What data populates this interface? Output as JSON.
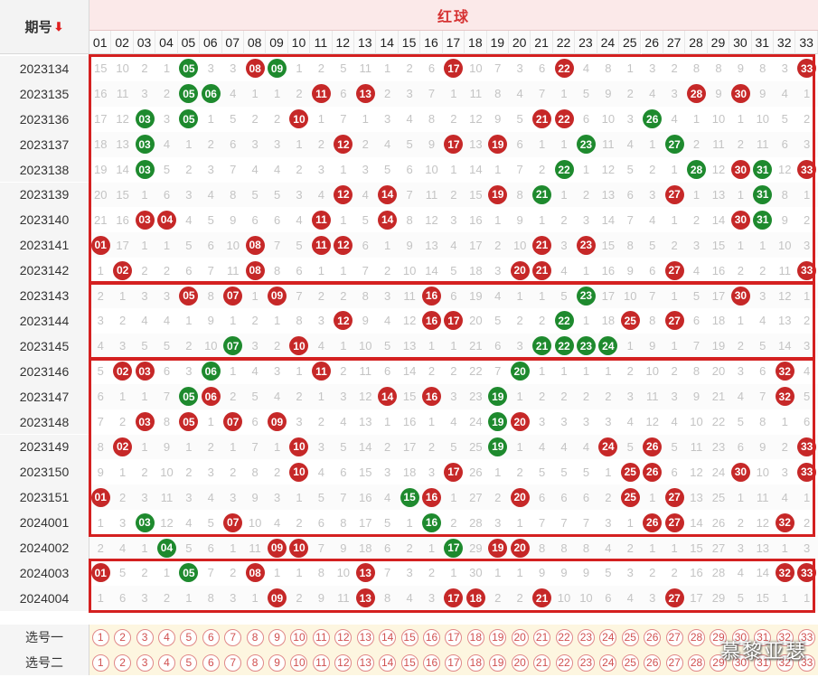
{
  "header": {
    "period_label": "期号",
    "sort_icon": "down-arrow",
    "red_ball_label": "红球",
    "numbers": [
      "01",
      "02",
      "03",
      "04",
      "05",
      "06",
      "07",
      "08",
      "09",
      "10",
      "11",
      "12",
      "13",
      "14",
      "15",
      "16",
      "17",
      "18",
      "19",
      "20",
      "21",
      "22",
      "23",
      "24",
      "25",
      "26",
      "27",
      "28",
      "29",
      "30",
      "31",
      "32",
      "33"
    ]
  },
  "colors": {
    "red_ball": "#c62828",
    "green_ball": "#1e8a2e",
    "box_border": "#d42020",
    "header_red": "#d63333"
  },
  "rows": [
    {
      "period": "2023134",
      "cells": [
        "15",
        "10",
        "2",
        "1",
        {
          "b": "05",
          "c": "g"
        },
        "3",
        "3",
        {
          "b": "08",
          "c": "r"
        },
        {
          "b": "09",
          "c": "g"
        },
        "1",
        "2",
        "5",
        "11",
        "1",
        "2",
        "6",
        {
          "b": "17",
          "c": "r"
        },
        "10",
        "7",
        "3",
        "6",
        {
          "b": "22",
          "c": "r"
        },
        "4",
        "8",
        "1",
        "3",
        "2",
        "8",
        "8",
        "9",
        "8",
        "3",
        {
          "b": "33",
          "c": "r"
        }
      ]
    },
    {
      "period": "2023135",
      "cells": [
        "16",
        "11",
        "3",
        "2",
        {
          "b": "05",
          "c": "g"
        },
        {
          "b": "06",
          "c": "g"
        },
        "4",
        "1",
        "1",
        "2",
        {
          "b": "11",
          "c": "r"
        },
        "6",
        {
          "b": "13",
          "c": "r"
        },
        "2",
        "3",
        "7",
        "1",
        "11",
        "8",
        "4",
        "7",
        "1",
        "5",
        "9",
        "2",
        "4",
        "3",
        {
          "b": "28",
          "c": "r"
        },
        "9",
        {
          "b": "30",
          "c": "r"
        },
        "9",
        "4",
        "1"
      ]
    },
    {
      "period": "2023136",
      "cells": [
        "17",
        "12",
        {
          "b": "03",
          "c": "g"
        },
        "3",
        {
          "b": "05",
          "c": "g"
        },
        "1",
        "5",
        "2",
        "2",
        {
          "b": "10",
          "c": "r"
        },
        "1",
        "7",
        "1",
        "3",
        "4",
        "8",
        "2",
        "12",
        "9",
        "5",
        {
          "b": "21",
          "c": "r"
        },
        {
          "b": "22",
          "c": "r"
        },
        "6",
        "10",
        "3",
        {
          "b": "26",
          "c": "g"
        },
        "4",
        "1",
        "10",
        "1",
        "10",
        "5",
        "2"
      ]
    },
    {
      "period": "2023137",
      "cells": [
        "18",
        "13",
        {
          "b": "03",
          "c": "g"
        },
        "4",
        "1",
        "2",
        "6",
        "3",
        "3",
        "1",
        "2",
        {
          "b": "12",
          "c": "r"
        },
        "2",
        "4",
        "5",
        "9",
        {
          "b": "17",
          "c": "r"
        },
        "13",
        {
          "b": "19",
          "c": "r"
        },
        "6",
        "1",
        "1",
        {
          "b": "23",
          "c": "g"
        },
        "11",
        "4",
        "1",
        {
          "b": "27",
          "c": "g"
        },
        "2",
        "11",
        "2",
        "11",
        "6",
        "3"
      ]
    },
    {
      "period": "2023138",
      "cells": [
        "19",
        "14",
        {
          "b": "03",
          "c": "g"
        },
        "5",
        "2",
        "3",
        "7",
        "4",
        "4",
        "2",
        "3",
        "1",
        "3",
        "5",
        "6",
        "10",
        "1",
        "14",
        "1",
        "7",
        "2",
        {
          "b": "22",
          "c": "g"
        },
        "1",
        "12",
        "5",
        "2",
        "1",
        {
          "b": "28",
          "c": "g"
        },
        "12",
        {
          "b": "30",
          "c": "r"
        },
        {
          "b": "31",
          "c": "g"
        },
        "12",
        {
          "b": "33",
          "c": "r"
        }
      ]
    },
    {
      "period": "2023139",
      "cells": [
        "20",
        "15",
        "1",
        "6",
        "3",
        "4",
        "8",
        "5",
        "5",
        "3",
        "4",
        {
          "b": "12",
          "c": "r"
        },
        "4",
        {
          "b": "14",
          "c": "r"
        },
        "7",
        "11",
        "2",
        "15",
        {
          "b": "19",
          "c": "r"
        },
        "8",
        {
          "b": "21",
          "c": "g"
        },
        "1",
        "2",
        "13",
        "6",
        "3",
        {
          "b": "27",
          "c": "r"
        },
        "1",
        "13",
        "1",
        {
          "b": "31",
          "c": "g"
        },
        "8",
        "1"
      ]
    },
    {
      "period": "2023140",
      "cells": [
        "21",
        "16",
        {
          "b": "03",
          "c": "r"
        },
        {
          "b": "04",
          "c": "r"
        },
        "4",
        "5",
        "9",
        "6",
        "6",
        "4",
        {
          "b": "11",
          "c": "r"
        },
        "1",
        "5",
        {
          "b": "14",
          "c": "r"
        },
        "8",
        "12",
        "3",
        "16",
        "1",
        "9",
        "1",
        "2",
        "3",
        "14",
        "7",
        "4",
        "1",
        "2",
        "14",
        {
          "b": "30",
          "c": "r"
        },
        {
          "b": "31",
          "c": "g"
        },
        "9",
        "2"
      ]
    },
    {
      "period": "2023141",
      "cells": [
        {
          "b": "01",
          "c": "r"
        },
        "17",
        "1",
        "1",
        "5",
        "6",
        "10",
        {
          "b": "08",
          "c": "r"
        },
        "7",
        "5",
        {
          "b": "11",
          "c": "r"
        },
        {
          "b": "12",
          "c": "r"
        },
        "6",
        "1",
        "9",
        "13",
        "4",
        "17",
        "2",
        "10",
        {
          "b": "21",
          "c": "r"
        },
        "3",
        {
          "b": "23",
          "c": "r"
        },
        "15",
        "8",
        "5",
        "2",
        "3",
        "15",
        "1",
        "1",
        "10",
        "3"
      ]
    },
    {
      "period": "2023142",
      "cells": [
        "1",
        {
          "b": "02",
          "c": "r"
        },
        "2",
        "2",
        "6",
        "7",
        "11",
        {
          "b": "08",
          "c": "r"
        },
        "8",
        "6",
        "1",
        "1",
        "7",
        "2",
        "10",
        "14",
        "5",
        "18",
        "3",
        {
          "b": "20",
          "c": "r"
        },
        {
          "b": "21",
          "c": "r"
        },
        "4",
        "1",
        "16",
        "9",
        "6",
        {
          "b": "27",
          "c": "r"
        },
        "4",
        "16",
        "2",
        "2",
        "11",
        {
          "b": "33",
          "c": "r"
        }
      ]
    },
    {
      "period": "2023143",
      "cells": [
        "2",
        "1",
        "3",
        "3",
        {
          "b": "05",
          "c": "r"
        },
        "8",
        {
          "b": "07",
          "c": "r"
        },
        "1",
        {
          "b": "09",
          "c": "r"
        },
        "7",
        "2",
        "2",
        "8",
        "3",
        "11",
        {
          "b": "16",
          "c": "r"
        },
        "6",
        "19",
        "4",
        "1",
        "1",
        "5",
        {
          "b": "23",
          "c": "g"
        },
        "17",
        "10",
        "7",
        "1",
        "5",
        "17",
        {
          "b": "30",
          "c": "r"
        },
        "3",
        "12",
        "1"
      ]
    },
    {
      "period": "2023144",
      "cells": [
        "3",
        "2",
        "4",
        "4",
        "1",
        "9",
        "1",
        "2",
        "1",
        "8",
        "3",
        {
          "b": "12",
          "c": "r"
        },
        "9",
        "4",
        "12",
        {
          "b": "16",
          "c": "r"
        },
        {
          "b": "17",
          "c": "r"
        },
        "20",
        "5",
        "2",
        "2",
        {
          "b": "22",
          "c": "g"
        },
        "1",
        "18",
        {
          "b": "25",
          "c": "r"
        },
        "8",
        {
          "b": "27",
          "c": "r"
        },
        "6",
        "18",
        "1",
        "4",
        "13",
        "2"
      ]
    },
    {
      "period": "2023145",
      "cells": [
        "4",
        "3",
        "5",
        "5",
        "2",
        "10",
        {
          "b": "07",
          "c": "g"
        },
        "3",
        "2",
        {
          "b": "10",
          "c": "r"
        },
        "4",
        "1",
        "10",
        "5",
        "13",
        "1",
        "1",
        "21",
        "6",
        "3",
        {
          "b": "21",
          "c": "g"
        },
        {
          "b": "22",
          "c": "g"
        },
        {
          "b": "23",
          "c": "g"
        },
        {
          "b": "24",
          "c": "g"
        },
        "1",
        "9",
        "1",
        "7",
        "19",
        "2",
        "5",
        "14",
        "3"
      ]
    },
    {
      "period": "2023146",
      "cells": [
        "5",
        {
          "b": "02",
          "c": "r"
        },
        {
          "b": "03",
          "c": "r"
        },
        "6",
        "3",
        {
          "b": "06",
          "c": "g"
        },
        "1",
        "4",
        "3",
        "1",
        {
          "b": "11",
          "c": "r"
        },
        "2",
        "11",
        "6",
        "14",
        "2",
        "2",
        "22",
        "7",
        {
          "b": "20",
          "c": "g"
        },
        "1",
        "1",
        "1",
        "1",
        "2",
        "10",
        "2",
        "8",
        "20",
        "3",
        "6",
        {
          "b": "32",
          "c": "r"
        },
        "4"
      ]
    },
    {
      "period": "2023147",
      "cells": [
        "6",
        "1",
        "1",
        "7",
        {
          "b": "05",
          "c": "g"
        },
        {
          "b": "06",
          "c": "r"
        },
        "2",
        "5",
        "4",
        "2",
        "1",
        "3",
        "12",
        {
          "b": "14",
          "c": "r"
        },
        "15",
        {
          "b": "16",
          "c": "r"
        },
        "3",
        "23",
        {
          "b": "19",
          "c": "g"
        },
        "1",
        "2",
        "2",
        "2",
        "2",
        "3",
        "11",
        "3",
        "9",
        "21",
        "4",
        "7",
        {
          "b": "32",
          "c": "r"
        },
        "5"
      ]
    },
    {
      "period": "2023148",
      "cells": [
        "7",
        "2",
        {
          "b": "03",
          "c": "r"
        },
        "8",
        {
          "b": "05",
          "c": "r"
        },
        "1",
        {
          "b": "07",
          "c": "r"
        },
        "6",
        {
          "b": "09",
          "c": "r"
        },
        "3",
        "2",
        "4",
        "13",
        "1",
        "16",
        "1",
        "4",
        "24",
        {
          "b": "19",
          "c": "g"
        },
        {
          "b": "20",
          "c": "r"
        },
        "3",
        "3",
        "3",
        "3",
        "4",
        "12",
        "4",
        "10",
        "22",
        "5",
        "8",
        "1",
        "6"
      ]
    },
    {
      "period": "2023149",
      "cells": [
        "8",
        {
          "b": "02",
          "c": "r"
        },
        "1",
        "9",
        "1",
        "2",
        "1",
        "7",
        "1",
        {
          "b": "10",
          "c": "r"
        },
        "3",
        "5",
        "14",
        "2",
        "17",
        "2",
        "5",
        "25",
        {
          "b": "19",
          "c": "g"
        },
        "1",
        "4",
        "4",
        "4",
        {
          "b": "24",
          "c": "r"
        },
        "5",
        {
          "b": "26",
          "c": "r"
        },
        "5",
        "11",
        "23",
        "6",
        "9",
        "2",
        {
          "b": "33",
          "c": "r"
        }
      ]
    },
    {
      "period": "2023150",
      "cells": [
        "9",
        "1",
        "2",
        "10",
        "2",
        "3",
        "2",
        "8",
        "2",
        {
          "b": "10",
          "c": "r"
        },
        "4",
        "6",
        "15",
        "3",
        "18",
        "3",
        {
          "b": "17",
          "c": "r"
        },
        "26",
        "1",
        "2",
        "5",
        "5",
        "5",
        "1",
        {
          "b": "25",
          "c": "r"
        },
        {
          "b": "26",
          "c": "r"
        },
        "6",
        "12",
        "24",
        {
          "b": "30",
          "c": "r"
        },
        "10",
        "3",
        {
          "b": "33",
          "c": "r"
        }
      ]
    },
    {
      "period": "2023151",
      "cells": [
        {
          "b": "01",
          "c": "r"
        },
        "2",
        "3",
        "11",
        "3",
        "4",
        "3",
        "9",
        "3",
        "1",
        "5",
        "7",
        "16",
        "4",
        {
          "b": "15",
          "c": "g"
        },
        {
          "b": "16",
          "c": "r"
        },
        "1",
        "27",
        "2",
        {
          "b": "20",
          "c": "r"
        },
        "6",
        "6",
        "6",
        "2",
        {
          "b": "25",
          "c": "r"
        },
        "1",
        {
          "b": "27",
          "c": "r"
        },
        "13",
        "25",
        "1",
        "11",
        "4",
        "1"
      ]
    },
    {
      "period": "2024001",
      "cells": [
        "1",
        "3",
        {
          "b": "03",
          "c": "g"
        },
        "12",
        "4",
        "5",
        {
          "b": "07",
          "c": "r"
        },
        "10",
        "4",
        "2",
        "6",
        "8",
        "17",
        "5",
        "1",
        {
          "b": "16",
          "c": "g"
        },
        "2",
        "28",
        "3",
        "1",
        "7",
        "7",
        "7",
        "3",
        "1",
        {
          "b": "26",
          "c": "r"
        },
        {
          "b": "27",
          "c": "r"
        },
        "14",
        "26",
        "2",
        "12",
        {
          "b": "32",
          "c": "r"
        },
        "2"
      ]
    },
    {
      "period": "2024002",
      "cells": [
        "2",
        "4",
        "1",
        {
          "b": "04",
          "c": "g"
        },
        "5",
        "6",
        "1",
        "11",
        {
          "b": "09",
          "c": "r"
        },
        {
          "b": "10",
          "c": "r"
        },
        "7",
        "9",
        "18",
        "6",
        "2",
        "1",
        {
          "b": "17",
          "c": "g"
        },
        "29",
        {
          "b": "19",
          "c": "r"
        },
        {
          "b": "20",
          "c": "r"
        },
        "8",
        "8",
        "8",
        "4",
        "2",
        "1",
        "1",
        "15",
        "27",
        "3",
        "13",
        "1",
        "3"
      ]
    },
    {
      "period": "2024003",
      "cells": [
        {
          "b": "01",
          "c": "r"
        },
        "5",
        "2",
        "1",
        {
          "b": "05",
          "c": "g"
        },
        "7",
        "2",
        {
          "b": "08",
          "c": "r"
        },
        "1",
        "1",
        "8",
        "10",
        {
          "b": "13",
          "c": "r"
        },
        "7",
        "3",
        "2",
        "1",
        "30",
        "1",
        "1",
        "9",
        "9",
        "9",
        "5",
        "3",
        "2",
        "2",
        "16",
        "28",
        "4",
        "14",
        {
          "b": "32",
          "c": "r"
        },
        {
          "b": "33",
          "c": "r"
        }
      ]
    },
    {
      "period": "2024004",
      "cells": [
        "1",
        "6",
        "3",
        "2",
        "1",
        "8",
        "3",
        "1",
        {
          "b": "09",
          "c": "r"
        },
        "2",
        "9",
        "11",
        {
          "b": "13",
          "c": "r"
        },
        "8",
        "4",
        "3",
        {
          "b": "17",
          "c": "r"
        },
        {
          "b": "18",
          "c": "r"
        },
        "2",
        "2",
        {
          "b": "21",
          "c": "r"
        },
        "10",
        "10",
        "6",
        "4",
        "3",
        {
          "b": "27",
          "c": "r"
        },
        "17",
        "29",
        "5",
        "15",
        "1",
        "1"
      ]
    }
  ],
  "pick_rows": [
    {
      "label": "选号一",
      "values": [
        "1",
        "2",
        "3",
        "4",
        "5",
        "6",
        "7",
        "8",
        "9",
        "10",
        "11",
        "12",
        "13",
        "14",
        "15",
        "16",
        "17",
        "18",
        "19",
        "20",
        "21",
        "22",
        "23",
        "24",
        "25",
        "26",
        "27",
        "28",
        "29",
        "30",
        "31",
        "32",
        "33"
      ]
    },
    {
      "label": "选号二",
      "values": [
        "1",
        "2",
        "3",
        "4",
        "5",
        "6",
        "7",
        "8",
        "9",
        "10",
        "11",
        "12",
        "13",
        "14",
        "15",
        "16",
        "17",
        "18",
        "19",
        "20",
        "21",
        "22",
        "23",
        "24",
        "25",
        "26",
        "27",
        "28",
        "29",
        "30",
        "31",
        "32",
        "33"
      ]
    }
  ],
  "watermark": "慕黎亚瑟"
}
